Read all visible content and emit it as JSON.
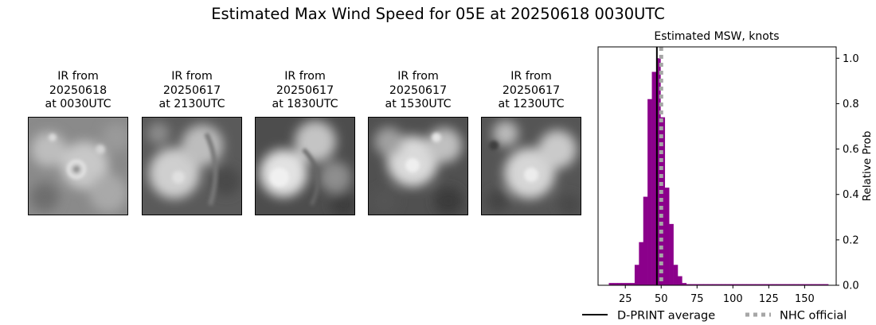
{
  "title": "Estimated Max Wind Speed for 05E at 20250618 0030UTC",
  "ir_panels": [
    {
      "line1": "IR from",
      "line2": "20250618",
      "line3": "at 0030UTC"
    },
    {
      "line1": "IR from",
      "line2": "20250617",
      "line3": "at 2130UTC"
    },
    {
      "line1": "IR from",
      "line2": "20250617",
      "line3": "at 1830UTC"
    },
    {
      "line1": "IR from",
      "line2": "20250617",
      "line3": "at 1530UTC"
    },
    {
      "line1": "IR from",
      "line2": "20250617",
      "line3": "at 1230UTC"
    }
  ],
  "chart_data": {
    "type": "bar",
    "title": "Estimated MSW, knots",
    "xlabel": "",
    "ylabel": "Relative Prob",
    "xlim": [
      6,
      172
    ],
    "ylim": [
      0,
      1.05
    ],
    "xticks": [
      25,
      50,
      75,
      100,
      125,
      150
    ],
    "yticks": [
      0.0,
      0.2,
      0.4,
      0.6,
      0.8,
      1.0
    ],
    "bin_width": 3,
    "bars": [
      {
        "x": 15,
        "value": 0.01
      },
      {
        "x": 18,
        "value": 0.01
      },
      {
        "x": 21,
        "value": 0.01
      },
      {
        "x": 24,
        "value": 0.01
      },
      {
        "x": 27,
        "value": 0.01
      },
      {
        "x": 30,
        "value": 0.01
      },
      {
        "x": 33,
        "value": 0.09
      },
      {
        "x": 36,
        "value": 0.19
      },
      {
        "x": 39,
        "value": 0.39
      },
      {
        "x": 42,
        "value": 0.82
      },
      {
        "x": 45,
        "value": 0.94
      },
      {
        "x": 48,
        "value": 1.0
      },
      {
        "x": 51,
        "value": 0.74
      },
      {
        "x": 54,
        "value": 0.43
      },
      {
        "x": 57,
        "value": 0.27
      },
      {
        "x": 60,
        "value": 0.09
      },
      {
        "x": 63,
        "value": 0.04
      },
      {
        "x": 66,
        "value": 0.01
      },
      {
        "x": 69,
        "value": 0.005
      },
      {
        "x": 72,
        "value": 0.005
      },
      {
        "x": 75,
        "value": 0.005
      },
      {
        "x": 78,
        "value": 0.005
      },
      {
        "x": 81,
        "value": 0.005
      },
      {
        "x": 84,
        "value": 0.005
      },
      {
        "x": 87,
        "value": 0.005
      },
      {
        "x": 90,
        "value": 0.005
      },
      {
        "x": 93,
        "value": 0.005
      },
      {
        "x": 96,
        "value": 0.005
      },
      {
        "x": 99,
        "value": 0.005
      },
      {
        "x": 102,
        "value": 0.005
      },
      {
        "x": 105,
        "value": 0.005
      },
      {
        "x": 108,
        "value": 0.005
      },
      {
        "x": 111,
        "value": 0.005
      },
      {
        "x": 114,
        "value": 0.005
      },
      {
        "x": 117,
        "value": 0.005
      },
      {
        "x": 120,
        "value": 0.005
      },
      {
        "x": 123,
        "value": 0.005
      },
      {
        "x": 126,
        "value": 0.005
      },
      {
        "x": 129,
        "value": 0.005
      },
      {
        "x": 132,
        "value": 0.005
      },
      {
        "x": 135,
        "value": 0.005
      },
      {
        "x": 138,
        "value": 0.005
      },
      {
        "x": 141,
        "value": 0.005
      },
      {
        "x": 144,
        "value": 0.005
      },
      {
        "x": 147,
        "value": 0.005
      },
      {
        "x": 150,
        "value": 0.005
      },
      {
        "x": 153,
        "value": 0.005
      },
      {
        "x": 156,
        "value": 0.005
      },
      {
        "x": 159,
        "value": 0.005
      },
      {
        "x": 162,
        "value": 0.005
      },
      {
        "x": 165,
        "value": 0.005
      }
    ],
    "bar_color": "#8b008b",
    "dprint_average": 47,
    "nhc_official": 50,
    "dprint_color": "#000000",
    "nhc_color": "#a6a6a6",
    "legend": [
      {
        "label": "D-PRINT average",
        "style": "solid",
        "color": "#000000"
      },
      {
        "label": "NHC official",
        "style": "dotted",
        "color": "#a6a6a6"
      }
    ],
    "legend_position": "bottom"
  }
}
